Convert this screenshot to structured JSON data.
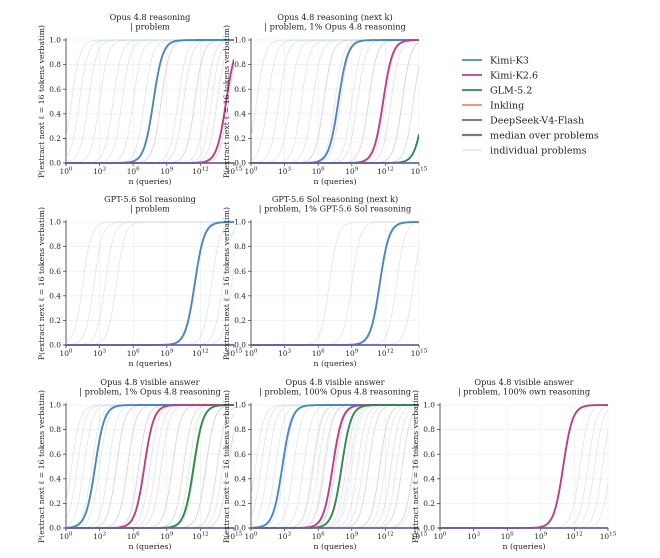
{
  "chart_data": {
    "type": "line",
    "ylabel": "P(extract next ℓ = 16 tokens verbatim)",
    "xlabel": "n (queries)",
    "x_scale": "log",
    "xlim": [
      1,
      1000000000000000.0
    ],
    "ylim": [
      0,
      1.0
    ],
    "xticks": [
      {
        "pow": 0,
        "base": "10",
        "exp": "0"
      },
      {
        "pow": 3,
        "base": "10",
        "exp": "3"
      },
      {
        "pow": 6,
        "base": "10",
        "exp": "6"
      },
      {
        "pow": 9,
        "base": "10",
        "exp": "9"
      },
      {
        "pow": 12,
        "base": "10",
        "exp": "12"
      },
      {
        "pow": 15,
        "base": "10",
        "exp": "15"
      }
    ],
    "yticks": [
      {
        "v": 0.0,
        "label": "0.0"
      },
      {
        "v": 0.2,
        "label": "0.2"
      },
      {
        "v": 0.4,
        "label": "0.4"
      },
      {
        "v": 0.6,
        "label": "0.6"
      },
      {
        "v": 0.8,
        "label": "0.8"
      },
      {
        "v": 1.0,
        "label": "1.0"
      }
    ],
    "grid": true,
    "legend": {
      "placement": "right",
      "entries": [
        {
          "label": "Kimi-K3",
          "color": "#4a86c5",
          "style": "line"
        },
        {
          "label": "Kimi-K2.6",
          "color": "#c43c80",
          "style": "line"
        },
        {
          "label": "GLM-5.2",
          "color": "#2f8a4c",
          "style": "line"
        },
        {
          "label": "Inkling",
          "color": "#e88a7d",
          "style": "line"
        },
        {
          "label": "DeepSeek-V4-Flash",
          "color": "#6a60a8",
          "style": "line"
        },
        {
          "label": "median over problems",
          "color": "#777777",
          "style": "thick"
        },
        {
          "label": "individual problems",
          "color": "#cfe3f1",
          "style": "faint"
        }
      ]
    },
    "panels": [
      {
        "id": "opus-problem",
        "title_lines": [
          "Opus 4.8 reasoning",
          "| problem"
        ],
        "series": [
          {
            "name": "Kimi-K3",
            "mid_log10": 7.8
          },
          {
            "name": "Kimi-K2.6",
            "mid_log10": 14.3
          },
          {
            "name": "DeepSeek-V4-Flash",
            "flat": 0.0
          }
        ],
        "faint_mids": {
          "blue": [
            0.5,
            1.2,
            2.0,
            3.0,
            4.2,
            5.0,
            6.0,
            7.0,
            8.5,
            10.0,
            11.5,
            13.0,
            14.5
          ],
          "pink": [
            8.5,
            10.5,
            11.5,
            12.5,
            13.5,
            14.5
          ],
          "green": []
        }
      },
      {
        "id": "opus-next-k",
        "title_lines": [
          "Opus 4.8 reasoning (next k)",
          "| problem, 1% Opus 4.8 reasoning"
        ],
        "series": [
          {
            "name": "Kimi-K3",
            "mid_log10": 7.8
          },
          {
            "name": "Kimi-K2.6",
            "mid_log10": 11.8
          },
          {
            "name": "GLM-5.2",
            "mid_log10": 15.5
          },
          {
            "name": "DeepSeek-V4-Flash",
            "flat": 0.0
          }
        ],
        "faint_mids": {
          "blue": [
            0.5,
            1.5,
            2.5,
            3.5,
            4.5,
            5.5,
            6.5,
            7.5,
            9.0,
            10.5,
            12.0,
            13.5
          ],
          "pink": [
            6.5,
            8.0,
            9.5,
            10.5,
            12.5,
            13.5,
            14.5
          ],
          "green": [
            13.5,
            14.5
          ]
        }
      },
      {
        "id": "gpt-problem",
        "title_lines": [
          "GPT-5.6 Sol reasoning",
          "| problem"
        ],
        "series": [
          {
            "name": "Kimi-K3",
            "mid_log10": 11.5
          },
          {
            "name": "DeepSeek-V4-Flash",
            "flat": 0.0
          }
        ],
        "faint_mids": {
          "blue": [
            1.5,
            2.5,
            3.5,
            4.5,
            11.5,
            13.0,
            14.0,
            14.8
          ],
          "pink": [],
          "green": []
        }
      },
      {
        "id": "gpt-next-k",
        "title_lines": [
          "GPT-5.6 Sol reasoning (next k)",
          "| problem, 1% GPT-5.6 Sol reasoning"
        ],
        "series": [
          {
            "name": "Kimi-K3",
            "mid_log10": 11.5
          },
          {
            "name": "DeepSeek-V4-Flash",
            "flat": 0.0
          }
        ],
        "faint_mids": {
          "blue": [
            7.0,
            9.0,
            11.5,
            13.0,
            14.5
          ],
          "pink": [],
          "green": []
        }
      },
      {
        "id": "opus-answer-1pct",
        "title_lines": [
          "Opus 4.8 visible answer",
          "| problem, 1% Opus 4.8 reasoning"
        ],
        "series": [
          {
            "name": "Kimi-K3",
            "mid_log10": 2.6
          },
          {
            "name": "Kimi-K2.6",
            "mid_log10": 7.0
          },
          {
            "name": "GLM-5.2",
            "mid_log10": 11.4
          },
          {
            "name": "DeepSeek-V4-Flash",
            "flat": 0.0
          }
        ],
        "faint_mids": {
          "blue": [
            0.5,
            1.0,
            1.6,
            2.3,
            3.0,
            3.8,
            4.5,
            5.5,
            6.5,
            8.0,
            9.5,
            11.0,
            12.5,
            14.0
          ],
          "pink": [
            4.5,
            5.5,
            6.5,
            7.5,
            8.5,
            9.5,
            10.5,
            11.5,
            12.5,
            13.5,
            14.5
          ],
          "green": [
            10.5,
            11.5,
            12.5,
            13.5,
            14.5
          ]
        }
      },
      {
        "id": "opus-answer-100pct",
        "title_lines": [
          "Opus 4.8 visible answer",
          "| problem, 100% Opus 4.8 reasoning"
        ],
        "series": [
          {
            "name": "Kimi-K3",
            "mid_log10": 2.8
          },
          {
            "name": "Kimi-K2.6",
            "mid_log10": 7.3
          },
          {
            "name": "GLM-5.2",
            "mid_log10": 8.1
          },
          {
            "name": "DeepSeek-V4-Flash",
            "flat": 0.0
          }
        ],
        "faint_mids": {
          "blue": [
            0.4,
            0.9,
            1.5,
            2.2,
            3.0,
            3.8,
            4.7,
            5.6,
            6.6,
            7.6,
            8.8,
            10.0,
            11.5,
            13.0,
            14.5
          ],
          "pink": [
            5.5,
            6.5,
            7.5,
            8.5,
            9.5,
            10.5,
            11.5,
            12.5,
            13.5,
            14.5
          ],
          "green": [
            6.0,
            7.5,
            9.0,
            10.5,
            12.0,
            13.5,
            14.8
          ]
        }
      },
      {
        "id": "opus-answer-own",
        "title_lines": [
          "Opus 4.8 visible answer",
          "| problem, 100% own reasoning"
        ],
        "series": [
          {
            "name": "Kimi-K2.6",
            "mid_log10": 11.0
          },
          {
            "name": "DeepSeek-V4-Flash",
            "flat": 0.0
          }
        ],
        "faint_mids": {
          "blue": [
            12.5,
            13.2,
            13.8,
            14.5,
            15.2
          ],
          "pink": [],
          "green": []
        }
      }
    ]
  }
}
